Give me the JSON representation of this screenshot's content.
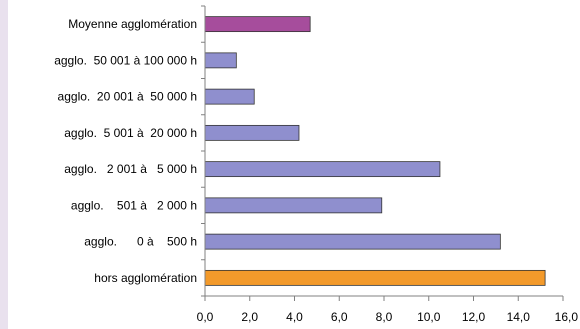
{
  "chart_data": {
    "type": "bar",
    "orientation": "horizontal",
    "title": "",
    "xlabel": "",
    "ylabel": "",
    "categories": [
      "Moyenne agglomération",
      "agglo.  50 001 à 100 000 h",
      "agglo.  20 001 à  50 000 h",
      "agglo.  5 001 à  20 000 h",
      "agglo.   2 001 à   5 000 h",
      "agglo.    501 à   2 000 h",
      "agglo.      0 à    500 h",
      "hors agglomération"
    ],
    "values": [
      4.7,
      1.4,
      2.2,
      4.2,
      10.5,
      7.9,
      13.2,
      15.2
    ],
    "bar_colors": [
      "#a64d9c",
      "#8f8fce",
      "#8f8fce",
      "#8f8fce",
      "#8f8fce",
      "#8f8fce",
      "#8f8fce",
      "#f39a2b"
    ],
    "xlim": [
      0,
      16
    ],
    "xticks": [
      "0,0",
      "2,0",
      "4,0",
      "6,0",
      "8,0",
      "10,0",
      "12,0",
      "14,0",
      "16,0"
    ],
    "grid": false,
    "legend": "none"
  }
}
